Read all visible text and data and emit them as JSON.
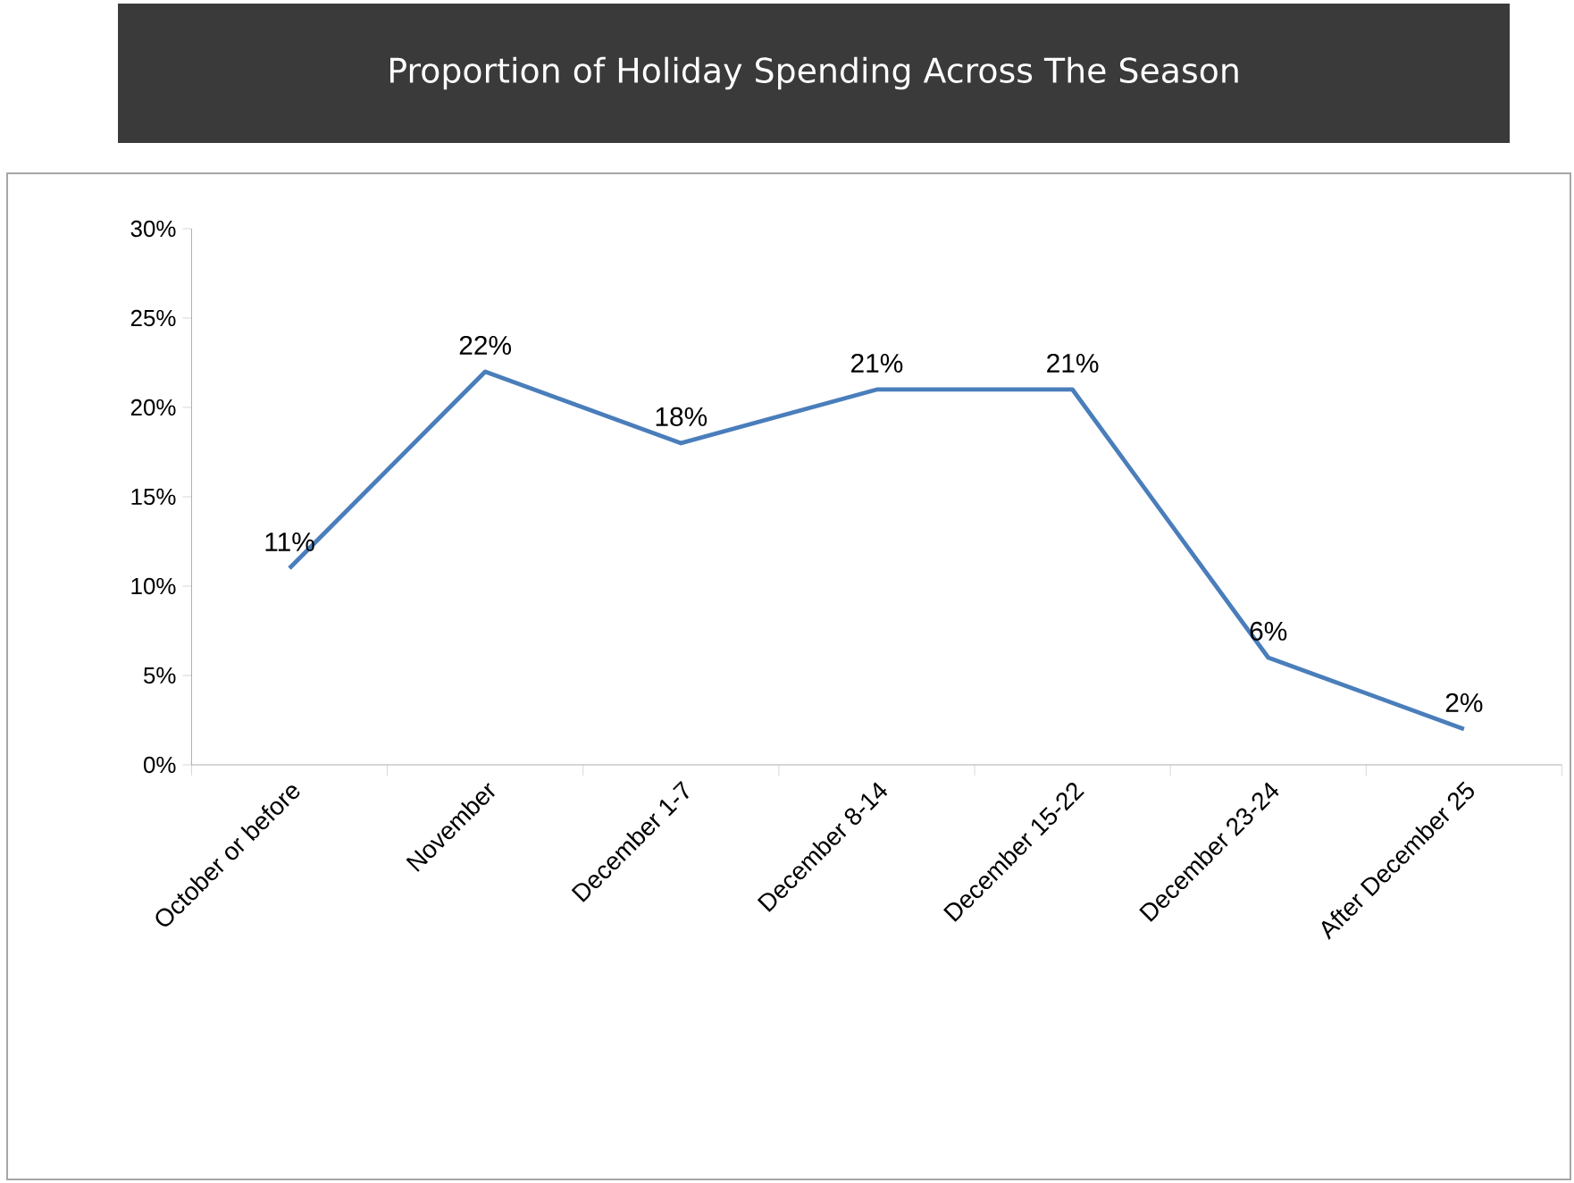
{
  "chart_data": {
    "type": "line",
    "title": "Proportion of Holiday Spending Across The Season",
    "categories": [
      "October or before",
      "November",
      "December 1-7",
      "December 8-14",
      "December 15-22",
      "December 23-24",
      "After December 25"
    ],
    "values": [
      11,
      22,
      18,
      21,
      21,
      6,
      2
    ],
    "value_labels": [
      "11%",
      "22%",
      "18%",
      "21%",
      "21%",
      "6%",
      "2%"
    ],
    "color": "#4a7ebb",
    "marker": "none",
    "line_style": "solid",
    "grid": false,
    "ylim": [
      0,
      30
    ],
    "yticks": [
      {
        "value": 0,
        "label": "0%"
      },
      {
        "value": 5,
        "label": "5%"
      },
      {
        "value": 10,
        "label": "10%"
      },
      {
        "value": 15,
        "label": "15%"
      },
      {
        "value": 20,
        "label": "20%"
      },
      {
        "value": 25,
        "label": "25%"
      },
      {
        "value": 30,
        "label": "30%"
      }
    ]
  }
}
